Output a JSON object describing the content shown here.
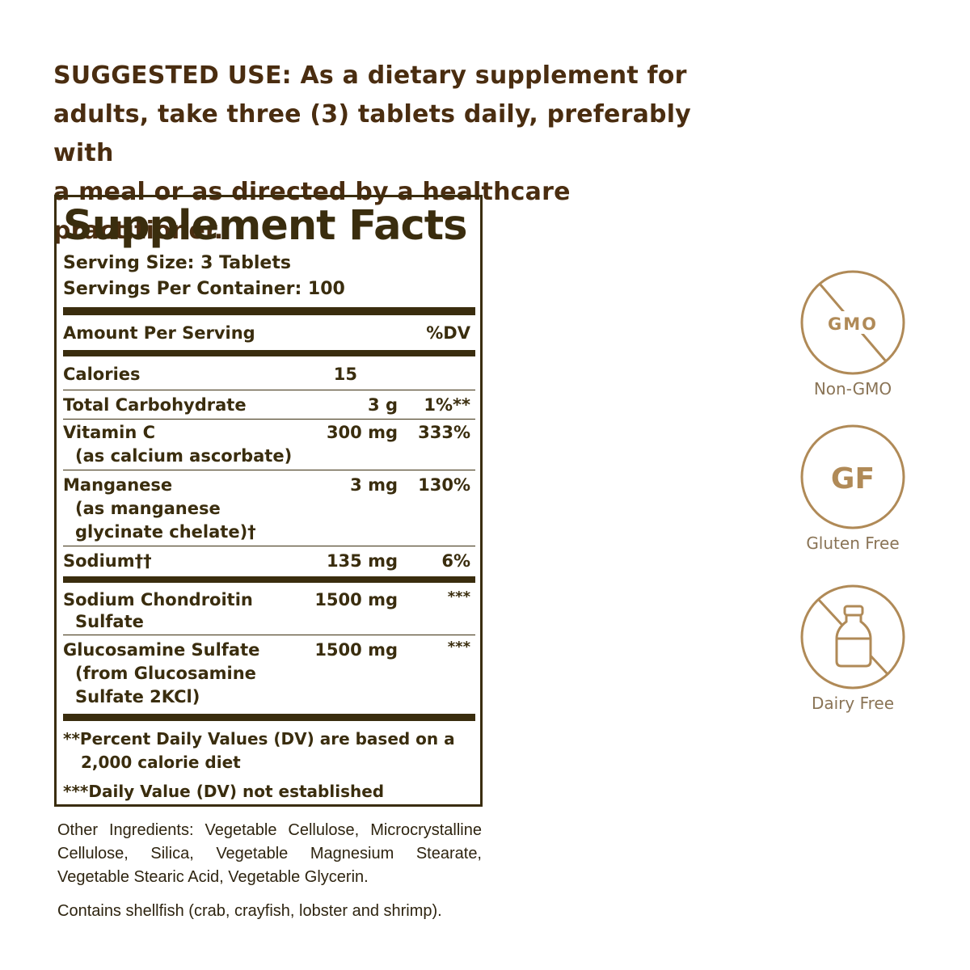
{
  "suggested_use": {
    "lines": [
      "SUGGESTED USE: As a dietary supplement for",
      "adults, take three (3) tablets daily, preferably with",
      "a meal or as directed by a healthcare practitioner."
    ]
  },
  "facts": {
    "title": "Supplement Facts",
    "serving_size": "Serving Size: 3 Tablets",
    "servings_per_container": "Servings Per Container: 100",
    "amount_header": "Amount Per Serving",
    "dv_header": "%DV",
    "rows": [
      {
        "name": "Calories",
        "amount": "15",
        "dv": ""
      },
      {
        "name": "Total Carbohydrate",
        "amount": "3 g",
        "dv": "1%**"
      },
      {
        "name": "Vitamin C",
        "sub1": "(as calcium ascorbate)",
        "amount": "300 mg",
        "dv": "333%"
      },
      {
        "name": "Manganese",
        "sub1": "(as manganese",
        "sub2": "glycinate chelate)†",
        "amount": "3 mg",
        "dv": "130%"
      },
      {
        "name": "Sodium††",
        "amount": "135 mg",
        "dv": "6%"
      },
      {
        "name": "Sodium Chondroitin",
        "sub1": "Sulfate",
        "amount": "1500 mg",
        "dv": "***"
      },
      {
        "name": "Glucosamine Sulfate",
        "sub1": "(from Glucosamine",
        "sub2": "Sulfate 2KCl)",
        "amount": "1500 mg",
        "dv": "***"
      }
    ],
    "footnote1_line1": "**Percent Daily Values (DV) are based on a",
    "footnote1_line2": "2,000 calorie diet",
    "footnote2": "***Daily Value (DV) not established"
  },
  "other_ingredients": "Other Ingredients: Vegetable Cellulose, Microcrystalline Cellulose, Silica, Vegetable Magnesium Stearate, Vegetable Stearic Acid, Vegetable Glycerin.",
  "contains": "Contains shellfish (crab, crayfish, lobster and shrimp).",
  "badges": [
    {
      "icon": "non-gmo-icon",
      "symbol": "GMO",
      "label": "Non-GMO"
    },
    {
      "icon": "gluten-free-icon",
      "symbol": "GF",
      "label": "Gluten Free"
    },
    {
      "icon": "dairy-free-icon",
      "symbol": "",
      "label": "Dairy Free"
    }
  ],
  "colors": {
    "text": "#3a2d0e",
    "heading": "#4a2d10",
    "badge": "#b08a57",
    "badge_label": "#8a7456"
  }
}
